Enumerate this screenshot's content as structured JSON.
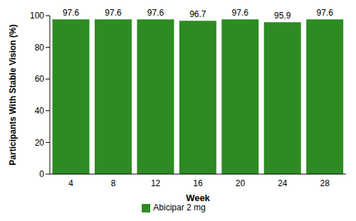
{
  "chart_data": {
    "type": "bar",
    "categories": [
      "4",
      "8",
      "12",
      "16",
      "20",
      "24",
      "28"
    ],
    "series": [
      {
        "name": "Abicipar 2 mg",
        "color": "#2e8b23",
        "values": [
          97.6,
          97.6,
          97.6,
          96.7,
          97.6,
          95.9,
          97.6
        ]
      }
    ],
    "x_label": "Week",
    "y_label": "Participants With Stable Vision (%)",
    "ylim": [
      0,
      100
    ],
    "yticks": [
      0,
      20,
      40,
      60,
      80,
      100
    ],
    "grid": false,
    "data_labels": true,
    "legend": "bottom"
  }
}
